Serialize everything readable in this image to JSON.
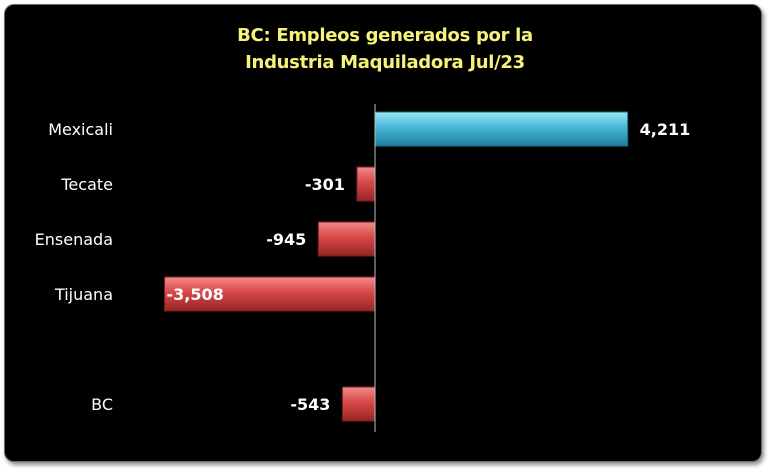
{
  "chart_data": {
    "type": "bar",
    "orientation": "horizontal",
    "title": "BC: Empleos generados por la",
    "subtitle": "Industria Maquiladora Jul/23",
    "categories": [
      "Mexicali",
      "Tecate",
      "Ensenada",
      "Tijuana",
      "BC"
    ],
    "values": [
      4211,
      -301,
      -945,
      -3508,
      -543
    ],
    "value_labels": [
      "4,211",
      "-301",
      "-945",
      "-3,508",
      "-543"
    ],
    "xlim": [
      -3800,
      4600
    ],
    "grid": false,
    "legend": "none",
    "colors": {
      "positive": "#3fb3d3",
      "negative": "#d94343",
      "background": "#000000",
      "title": "#f6f27a",
      "text": "#ffffff"
    }
  }
}
